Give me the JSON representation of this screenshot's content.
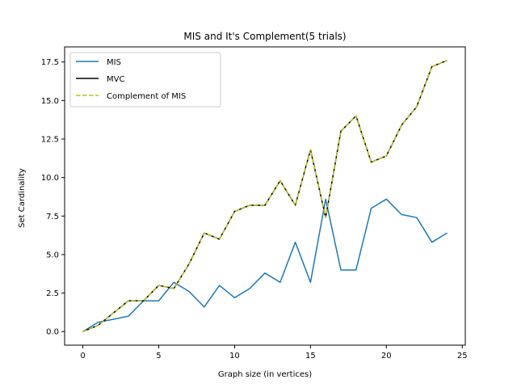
{
  "chart_data": {
    "type": "line",
    "title": "MIS and It's Complement(5 trials)",
    "xlabel": "Graph size (in vertices)",
    "ylabel": "Set Cardinality",
    "xlim": [
      -1.2,
      25.2
    ],
    "ylim": [
      -0.88,
      18.48
    ],
    "xticks": [
      0,
      5,
      10,
      15,
      20,
      25
    ],
    "xtick_labels": [
      "0",
      "5",
      "10",
      "15",
      "20",
      "25"
    ],
    "yticks": [
      0,
      2.5,
      5,
      7.5,
      10,
      12.5,
      15,
      17.5
    ],
    "ytick_labels": [
      "0.0",
      "2.5",
      "5.0",
      "7.5",
      "10.0",
      "12.5",
      "15.0",
      "17.5"
    ],
    "grid": false,
    "legend_position": "upper-left",
    "x": [
      0,
      1,
      2,
      3,
      4,
      5,
      6,
      7,
      8,
      9,
      10,
      11,
      12,
      13,
      14,
      15,
      16,
      17,
      18,
      19,
      20,
      21,
      22,
      23,
      24
    ],
    "series": [
      {
        "name": "MIS",
        "color": "#1f77b4",
        "style": "solid",
        "values": [
          0,
          0.6,
          0.8,
          1.0,
          2.0,
          2.0,
          3.2,
          2.6,
          1.6,
          3.0,
          2.2,
          2.8,
          3.8,
          3.2,
          5.8,
          3.2,
          8.6,
          4.0,
          4.0,
          8.0,
          8.6,
          7.6,
          7.4,
          5.8,
          6.4
        ]
      },
      {
        "name": "MVC",
        "color": "#000000",
        "style": "solid",
        "values": [
          0,
          0.4,
          1.2,
          2.0,
          2.0,
          3.0,
          2.8,
          4.4,
          6.4,
          6.0,
          7.8,
          8.2,
          8.2,
          9.8,
          8.2,
          11.8,
          7.4,
          13.0,
          14.0,
          11.0,
          11.4,
          13.4,
          14.6,
          17.2,
          17.6
        ]
      },
      {
        "name": "Complement of MIS",
        "color": "#bcbd22",
        "style": "dashed",
        "values": [
          0,
          0.4,
          1.2,
          2.0,
          2.0,
          3.0,
          2.8,
          4.4,
          6.4,
          6.0,
          7.8,
          8.2,
          8.2,
          9.8,
          8.2,
          11.8,
          7.4,
          13.0,
          14.0,
          11.0,
          11.4,
          13.4,
          14.6,
          17.2,
          17.6
        ]
      }
    ]
  }
}
